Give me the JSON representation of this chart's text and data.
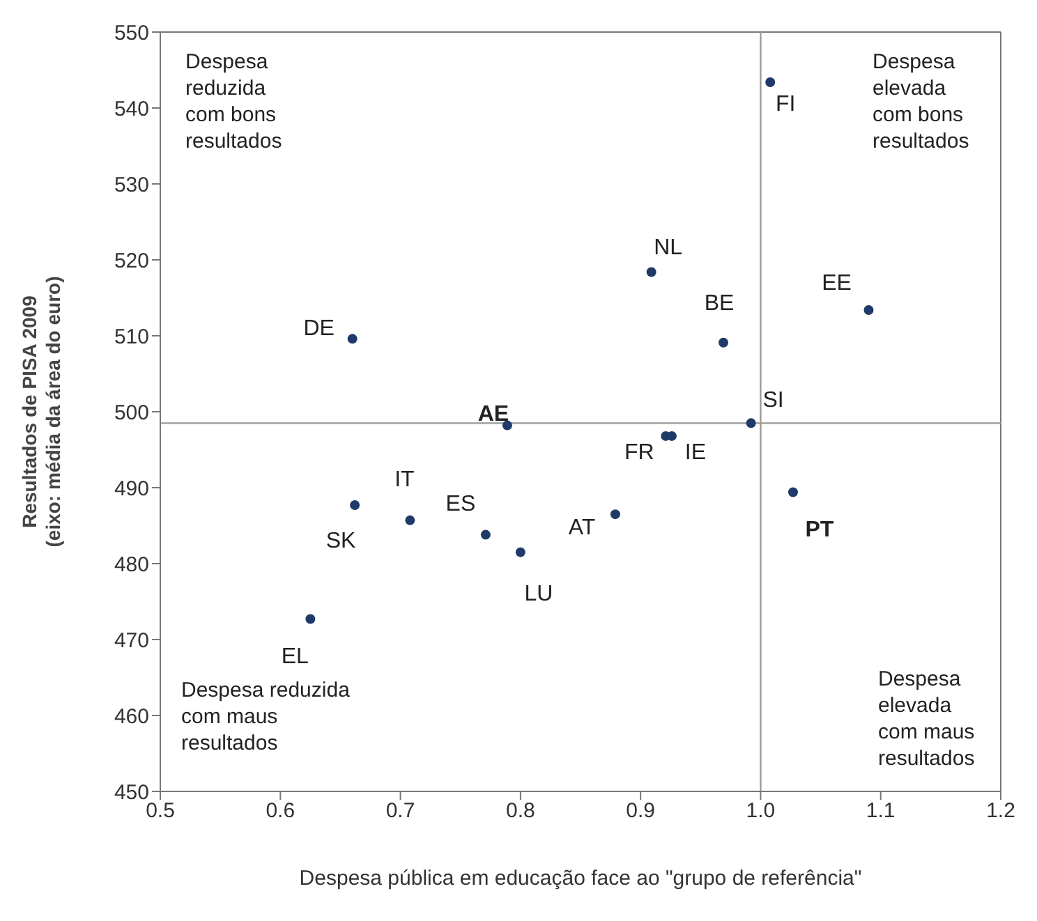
{
  "chart_data": {
    "type": "scatter",
    "xlabel": "Despesa pública em educação face ao \"grupo de referência\"",
    "ylabel": "Resultados de PISA 2009\n(eixo: média da área do euro)",
    "x": [
      1.008,
      0.909,
      0.969,
      1.09,
      0.992,
      0.921,
      0.926,
      0.66,
      0.789,
      0.662,
      0.708,
      0.771,
      0.8,
      0.625,
      0.879,
      1.027
    ],
    "series": [
      {
        "color": "#1f3a68",
        "values": [
          543.4,
          518.4,
          509.1,
          513.4,
          498.5,
          496.8,
          496.8,
          509.6,
          498.2,
          487.7,
          485.7,
          483.8,
          481.5,
          472.7,
          486.5,
          489.4
        ]
      }
    ],
    "xlim": [
      0.5,
      1.2
    ],
    "xticks": [
      0.5,
      0.6,
      0.7,
      0.8,
      0.9,
      {
        "value": 1,
        "label": "1.0"
      },
      1.1,
      1.2
    ],
    "ylim": [
      450,
      550
    ],
    "yticks": [
      450,
      460,
      470,
      480,
      490,
      500,
      510,
      520,
      530,
      540,
      550
    ],
    "marker": "circle",
    "ref_lines": [
      {
        "axis": "x",
        "value": 1,
        "color": "#9a9a9a"
      },
      {
        "axis": "y",
        "value": 498.5,
        "color": "#9a9a9a"
      }
    ],
    "annotations": [
      {
        "text": "FI",
        "x": 1.008,
        "y": 543.4
      },
      {
        "text": "NL",
        "x": 0.909,
        "y": 518.4
      },
      {
        "text": "BE",
        "x": 0.969,
        "y": 509.1
      },
      {
        "text": "EE",
        "x": 1.09,
        "y": 513.4
      },
      {
        "text": "SI",
        "x": 0.992,
        "y": 498.5
      },
      {
        "text": "FR",
        "x": 0.921,
        "y": 496.8
      },
      {
        "text": "IE",
        "x": 0.926,
        "y": 496.8
      },
      {
        "text": "DE",
        "x": 0.66,
        "y": 509.6
      },
      {
        "text": "AE",
        "x": 0.789,
        "y": 498.2
      },
      {
        "text": "SK",
        "x": 0.662,
        "y": 487.7
      },
      {
        "text": "IT",
        "x": 0.708,
        "y": 485.7
      },
      {
        "text": "ES",
        "x": 0.771,
        "y": 483.8
      },
      {
        "text": "LU",
        "x": 0.8,
        "y": 481.5
      },
      {
        "text": "EL",
        "x": 0.625,
        "y": 472.7
      },
      {
        "text": "AT",
        "x": 0.879,
        "y": 486.5
      },
      {
        "text": "PT",
        "x": 1.027,
        "y": 489.4
      },
      "Despesa reduzida com bons resultados",
      "Despesa elevada com bons resultados",
      "Despesa reduzida com maus resultados",
      "Despesa elevada com maus resultados"
    ]
  }
}
